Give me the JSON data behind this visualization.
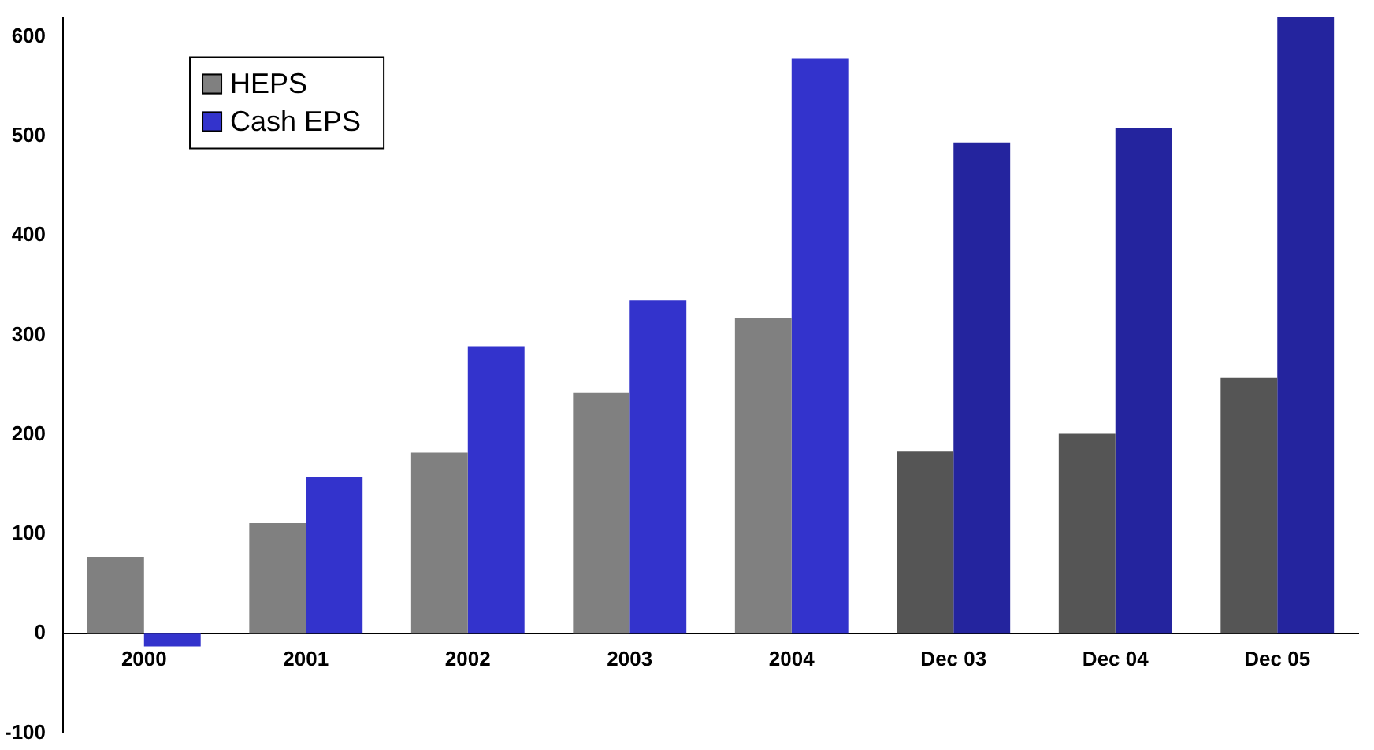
{
  "chart_data": {
    "type": "bar",
    "categories": [
      "2000",
      "2001",
      "2002",
      "2003",
      "2004",
      "Dec 03",
      "Dec 04",
      "Dec 05"
    ],
    "series": [
      {
        "name": "HEPS",
        "color": "#808080",
        "colors": [
          "#808080",
          "#808080",
          "#808080",
          "#808080",
          "#808080",
          "#555555",
          "#555555",
          "#555555"
        ],
        "values": [
          77,
          111,
          182,
          242,
          317,
          183,
          201,
          257
        ]
      },
      {
        "name": "Cash EPS",
        "color": "#3333cc",
        "colors": [
          "#3333cc",
          "#3333cc",
          "#3333cc",
          "#3333cc",
          "#3333cc",
          "#24249e",
          "#24249e",
          "#24249e"
        ],
        "values": [
          -13,
          157,
          289,
          335,
          578,
          494,
          508,
          620
        ]
      }
    ],
    "ylim": [
      -100,
      620
    ],
    "yticks": [
      -100,
      0,
      100,
      200,
      300,
      400,
      500,
      600
    ],
    "grid": false,
    "legend": "top left"
  }
}
